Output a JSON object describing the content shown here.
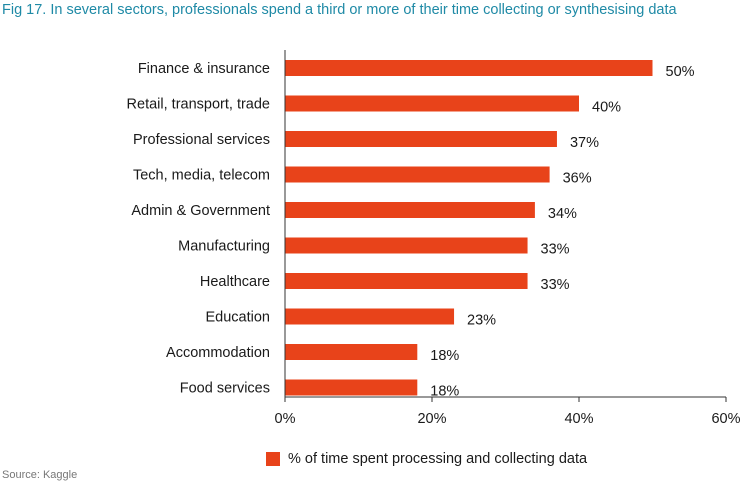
{
  "title": "Fig 17. In several sectors, professionals spend a third or more of their time collecting or synthesising data",
  "source": "Source: Kaggle",
  "colors": {
    "bar": "#e8431a",
    "title": "#1f8aa6",
    "axis": "#333333",
    "text": "#1a1a1a"
  },
  "chart_data": {
    "type": "bar",
    "orientation": "horizontal",
    "categories": [
      "Finance & insurance",
      "Retail, transport, trade",
      "Professional services",
      "Tech, media, telecom",
      "Admin & Government",
      "Manufacturing",
      "Healthcare",
      "Education",
      "Accommodation",
      "Food services"
    ],
    "series": [
      {
        "name": "% of time spent processing and collecting data",
        "values": [
          50,
          40,
          37,
          36,
          34,
          33,
          33,
          23,
          18,
          18
        ],
        "value_labels": [
          "50%",
          "40%",
          "37%",
          "36%",
          "34%",
          "33%",
          "33%",
          "23%",
          "18%",
          "18%"
        ]
      }
    ],
    "xlim": [
      0,
      60
    ],
    "xticks": [
      0,
      20,
      40,
      60
    ],
    "xtick_labels": [
      "0%",
      "20%",
      "40%",
      "60%"
    ],
    "grid": false,
    "legend": "bottom"
  }
}
